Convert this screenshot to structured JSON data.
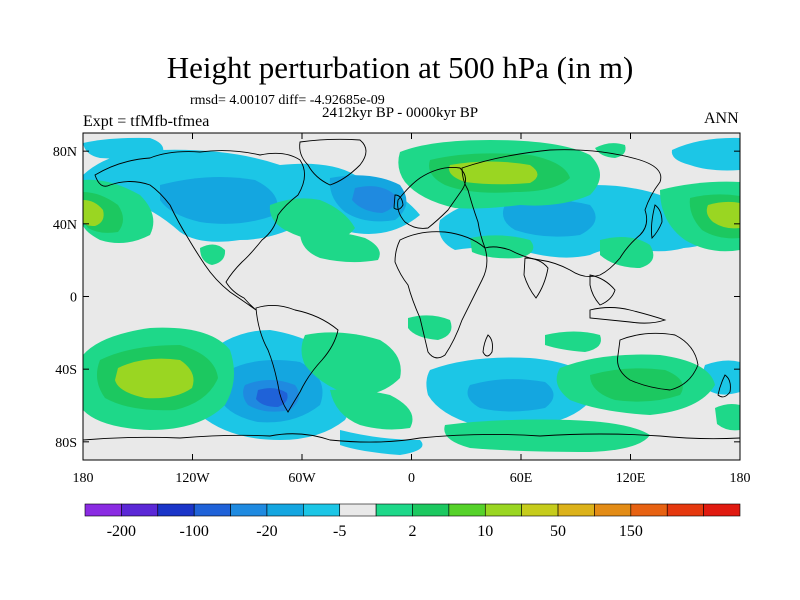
{
  "title": "Height perturbation at 500 hPa (in m)",
  "subtitle_stats": "rmsd= 4.00107 diff= -4.92685e-09",
  "subtitle_period": "2412kyr BP - 0000kyr BP",
  "experiment": "Expt = tfMfb-tfmea",
  "season": "ANN",
  "map": {
    "lon_range": [
      -180,
      180
    ],
    "lat_range": [
      -90,
      90
    ],
    "lon_ticks": [
      {
        "value": -180,
        "label": "180"
      },
      {
        "value": -120,
        "label": "120W"
      },
      {
        "value": -60,
        "label": "60W"
      },
      {
        "value": 0,
        "label": "0"
      },
      {
        "value": 60,
        "label": "60E"
      },
      {
        "value": 120,
        "label": "120E"
      },
      {
        "value": 180,
        "label": "180"
      }
    ],
    "lat_ticks": [
      {
        "value": 80,
        "label": "80N"
      },
      {
        "value": 40,
        "label": "40N"
      },
      {
        "value": 0,
        "label": "0"
      },
      {
        "value": -40,
        "label": "40S"
      },
      {
        "value": -80,
        "label": "80S"
      }
    ]
  },
  "colorbar": {
    "colors": [
      "#8a2be2",
      "#5b28d6",
      "#1a35c8",
      "#1f62d8",
      "#1f8ae0",
      "#14a6e0",
      "#1cc6e6",
      "#e9e9e9",
      "#1ed889",
      "#1cc860",
      "#56d22a",
      "#9ad622",
      "#c6cc1c",
      "#dcb21a",
      "#e38c16",
      "#e76212",
      "#e5380e",
      "#e01a10"
    ],
    "labels": [
      {
        "slot": 1,
        "text": "-200"
      },
      {
        "slot": 3,
        "text": "-100"
      },
      {
        "slot": 5,
        "text": "-20"
      },
      {
        "slot": 7,
        "text": "-5"
      },
      {
        "slot": 9,
        "text": "2"
      },
      {
        "slot": 11,
        "text": "10"
      },
      {
        "slot": 13,
        "text": "50"
      },
      {
        "slot": 15,
        "text": "150"
      }
    ]
  },
  "field_colors": {
    "background": "#e9e9e9",
    "blue_light": "#1cc6e6",
    "blue_mid": "#14a6e0",
    "blue_dark": "#1f8ae0",
    "blue_deep": "#1f62d8",
    "green": "#1ed889",
    "green_mid": "#1cc860",
    "green_yellow": "#9ad622",
    "coast": "#000000"
  }
}
